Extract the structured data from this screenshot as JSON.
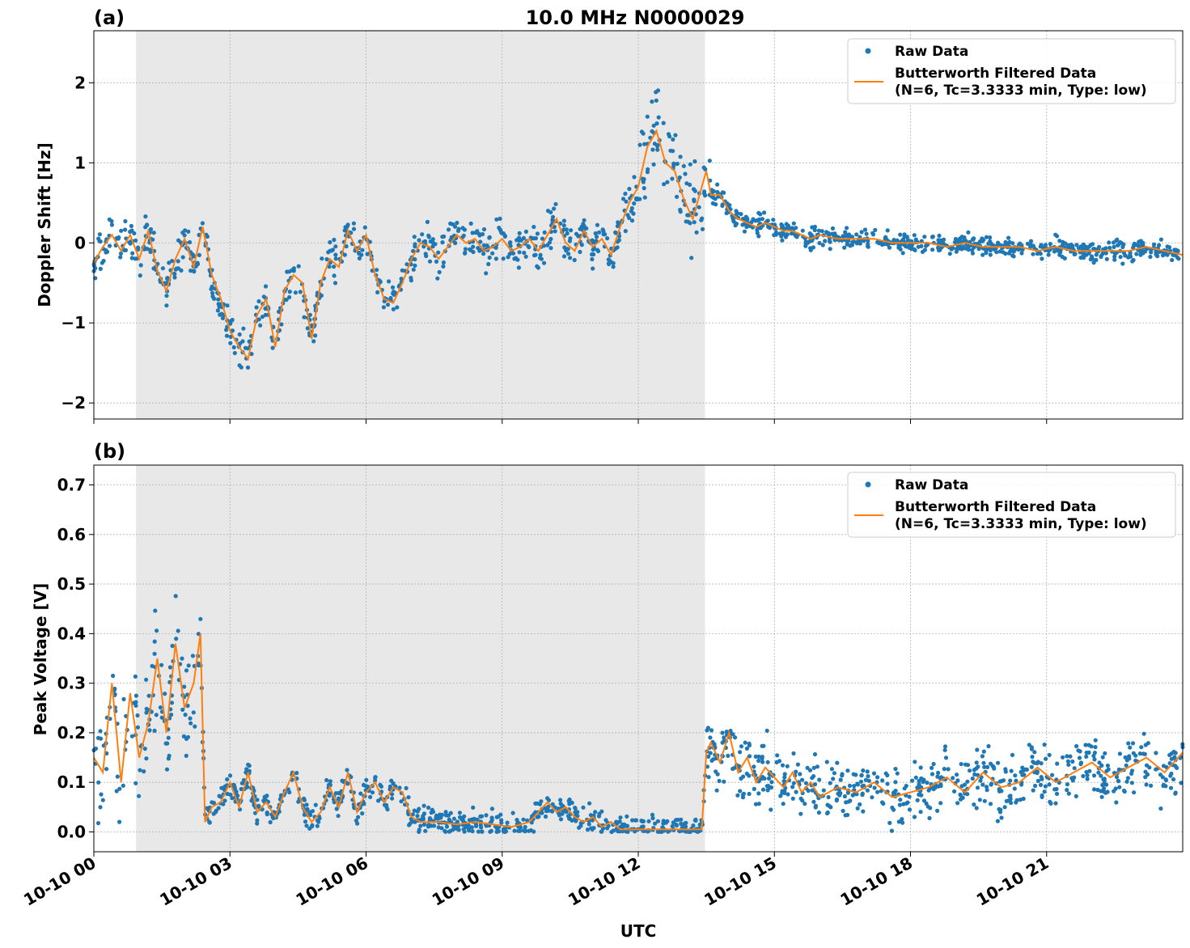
{
  "figure": {
    "title": "10.0 MHz N0000029",
    "xlabel": "UTC",
    "x_tick_labels": [
      "10-10 00",
      "10-10 03",
      "10-10 06",
      "10-10 09",
      "10-10 12",
      "10-10 15",
      "10-10 18",
      "10-10 21"
    ],
    "colors": {
      "raw": "#1f77b4",
      "filtered": "#ff7f0e",
      "night_shade": "#e8e8e8",
      "grid": "#b0b0b0"
    }
  },
  "chart_data": [
    {
      "type": "scatter",
      "panel_label": "(a)",
      "ylabel": "Doppler Shift [Hz]",
      "x_unit": "hours UTC",
      "xlim": [
        0,
        24
      ],
      "ylim": [
        -2.2,
        2.65
      ],
      "y_ticks": [
        -2,
        -1,
        0,
        1,
        2
      ],
      "y_tick_labels": [
        "−2",
        "−1",
        "0",
        "1",
        "2"
      ],
      "shaded_interval": [
        0.93,
        13.47
      ],
      "legend": {
        "raw": "Raw Data",
        "filtered_line1": "Butterworth Filtered Data",
        "filtered_line2": "(N=6, Tc=3.3333 min, Type: low)",
        "placement": "upper right"
      },
      "series": [
        {
          "name": "Butterworth Filtered Data",
          "x": [
            0,
            0.2,
            0.4,
            0.6,
            0.8,
            1.0,
            1.2,
            1.4,
            1.6,
            1.8,
            2.0,
            2.2,
            2.4,
            2.6,
            2.8,
            3.0,
            3.2,
            3.4,
            3.6,
            3.8,
            4.0,
            4.2,
            4.4,
            4.6,
            4.8,
            5.0,
            5.2,
            5.4,
            5.6,
            5.8,
            6.0,
            6.2,
            6.4,
            6.6,
            6.8,
            7.0,
            7.2,
            7.4,
            7.6,
            7.8,
            8.0,
            8.2,
            8.4,
            8.6,
            8.8,
            9.0,
            9.2,
            9.4,
            9.6,
            9.8,
            10.0,
            10.2,
            10.4,
            10.6,
            10.8,
            11.0,
            11.2,
            11.4,
            11.6,
            11.8,
            12.0,
            12.2,
            12.4,
            12.6,
            12.8,
            13.0,
            13.2,
            13.4,
            13.5,
            13.6,
            13.8,
            14.0,
            14.2,
            14.4,
            14.6,
            14.8,
            15.0,
            15.2,
            15.4,
            15.6,
            15.8,
            16.0,
            16.4,
            16.8,
            17.2,
            17.6,
            18.0,
            18.4,
            18.8,
            19.2,
            19.6,
            20.0,
            20.4,
            20.8,
            21.2,
            21.6,
            22.0,
            22.4,
            22.8,
            23.2,
            23.6,
            24.0
          ],
          "y": [
            -0.25,
            -0.05,
            0.1,
            -0.1,
            0.1,
            -0.2,
            0.15,
            -0.35,
            -0.6,
            -0.2,
            0.05,
            -0.3,
            0.2,
            -0.4,
            -0.7,
            -1.1,
            -1.3,
            -1.45,
            -0.9,
            -0.7,
            -1.3,
            -0.6,
            -0.4,
            -0.5,
            -1.2,
            -0.5,
            -0.2,
            -0.3,
            0.15,
            -0.1,
            0.1,
            -0.4,
            -0.7,
            -0.75,
            -0.5,
            -0.2,
            0.0,
            -0.05,
            -0.2,
            -0.05,
            0.1,
            0.0,
            0.05,
            -0.1,
            -0.05,
            0.05,
            -0.1,
            -0.05,
            0.05,
            -0.1,
            0.1,
            0.3,
            0.0,
            -0.1,
            0.15,
            -0.05,
            0.05,
            -0.15,
            0.2,
            0.5,
            0.7,
            1.2,
            1.4,
            1.0,
            0.9,
            0.55,
            0.3,
            0.7,
            0.9,
            0.6,
            0.6,
            0.4,
            0.3,
            0.25,
            0.2,
            0.25,
            0.2,
            0.15,
            0.15,
            0.1,
            0.05,
            0.1,
            0.05,
            0.05,
            0.05,
            0.0,
            0.0,
            0.0,
            -0.05,
            0.0,
            -0.05,
            -0.05,
            -0.05,
            -0.1,
            -0.05,
            -0.1,
            -0.1,
            -0.1,
            -0.1,
            -0.05,
            -0.1,
            -0.15
          ]
        },
        {
          "name": "Raw Data",
          "x_range": [
            0,
            24
          ],
          "spread_hz": 0.35
        }
      ]
    },
    {
      "type": "scatter",
      "panel_label": "(b)",
      "ylabel": "Peak Voltage [V]",
      "x_unit": "hours UTC",
      "xlim": [
        0,
        24
      ],
      "ylim": [
        -0.04,
        0.74
      ],
      "y_ticks": [
        0.0,
        0.1,
        0.2,
        0.3,
        0.4,
        0.5,
        0.6,
        0.7
      ],
      "y_tick_labels": [
        "0.0",
        "0.1",
        "0.2",
        "0.3",
        "0.4",
        "0.5",
        "0.6",
        "0.7"
      ],
      "shaded_interval": [
        0.93,
        13.47
      ],
      "legend": {
        "raw": "Raw Data",
        "filtered_line1": "Butterworth Filtered Data",
        "filtered_line2": "(N=6, Tc=3.3333 min, Type: low)",
        "placement": "upper right"
      },
      "series": [
        {
          "name": "Butterworth Filtered Data",
          "x": [
            0,
            0.2,
            0.4,
            0.6,
            0.8,
            1.0,
            1.2,
            1.4,
            1.6,
            1.8,
            2.0,
            2.2,
            2.35,
            2.45,
            2.6,
            2.8,
            3.0,
            3.2,
            3.4,
            3.6,
            3.8,
            4.0,
            4.2,
            4.4,
            4.6,
            4.8,
            5.0,
            5.2,
            5.4,
            5.6,
            5.8,
            6.0,
            6.2,
            6.4,
            6.6,
            6.8,
            7.0,
            7.2,
            7.6,
            8.0,
            8.4,
            8.8,
            9.2,
            9.6,
            10.0,
            10.2,
            10.4,
            10.6,
            10.8,
            11.0,
            11.2,
            11.4,
            11.6,
            11.8,
            12.0,
            12.5,
            13.0,
            13.4,
            13.5,
            13.6,
            13.8,
            14.0,
            14.2,
            14.4,
            14.6,
            14.8,
            15.0,
            15.2,
            15.4,
            15.6,
            15.8,
            16.0,
            16.4,
            16.8,
            17.2,
            17.6,
            18.0,
            18.4,
            18.8,
            19.2,
            19.6,
            20.0,
            20.4,
            20.8,
            21.2,
            21.6,
            22.0,
            22.4,
            22.8,
            23.2,
            23.6,
            24.0
          ],
          "y": [
            0.15,
            0.12,
            0.3,
            0.1,
            0.28,
            0.15,
            0.22,
            0.35,
            0.2,
            0.38,
            0.25,
            0.3,
            0.4,
            0.02,
            0.05,
            0.06,
            0.1,
            0.05,
            0.12,
            0.04,
            0.06,
            0.03,
            0.08,
            0.12,
            0.05,
            0.02,
            0.04,
            0.09,
            0.05,
            0.12,
            0.04,
            0.08,
            0.1,
            0.06,
            0.09,
            0.08,
            0.03,
            0.02,
            0.02,
            0.015,
            0.02,
            0.015,
            0.01,
            0.02,
            0.06,
            0.04,
            0.05,
            0.03,
            0.02,
            0.03,
            0.01,
            0.02,
            0.005,
            0.005,
            0.005,
            0.005,
            0.005,
            0.005,
            0.16,
            0.18,
            0.14,
            0.2,
            0.12,
            0.15,
            0.1,
            0.13,
            0.11,
            0.09,
            0.12,
            0.08,
            0.1,
            0.07,
            0.09,
            0.08,
            0.1,
            0.07,
            0.08,
            0.09,
            0.11,
            0.08,
            0.12,
            0.09,
            0.1,
            0.13,
            0.1,
            0.12,
            0.14,
            0.11,
            0.13,
            0.15,
            0.12,
            0.16
          ]
        },
        {
          "name": "Raw Data",
          "x_range": [
            0,
            24
          ],
          "spread_v": 0.08
        }
      ]
    }
  ]
}
